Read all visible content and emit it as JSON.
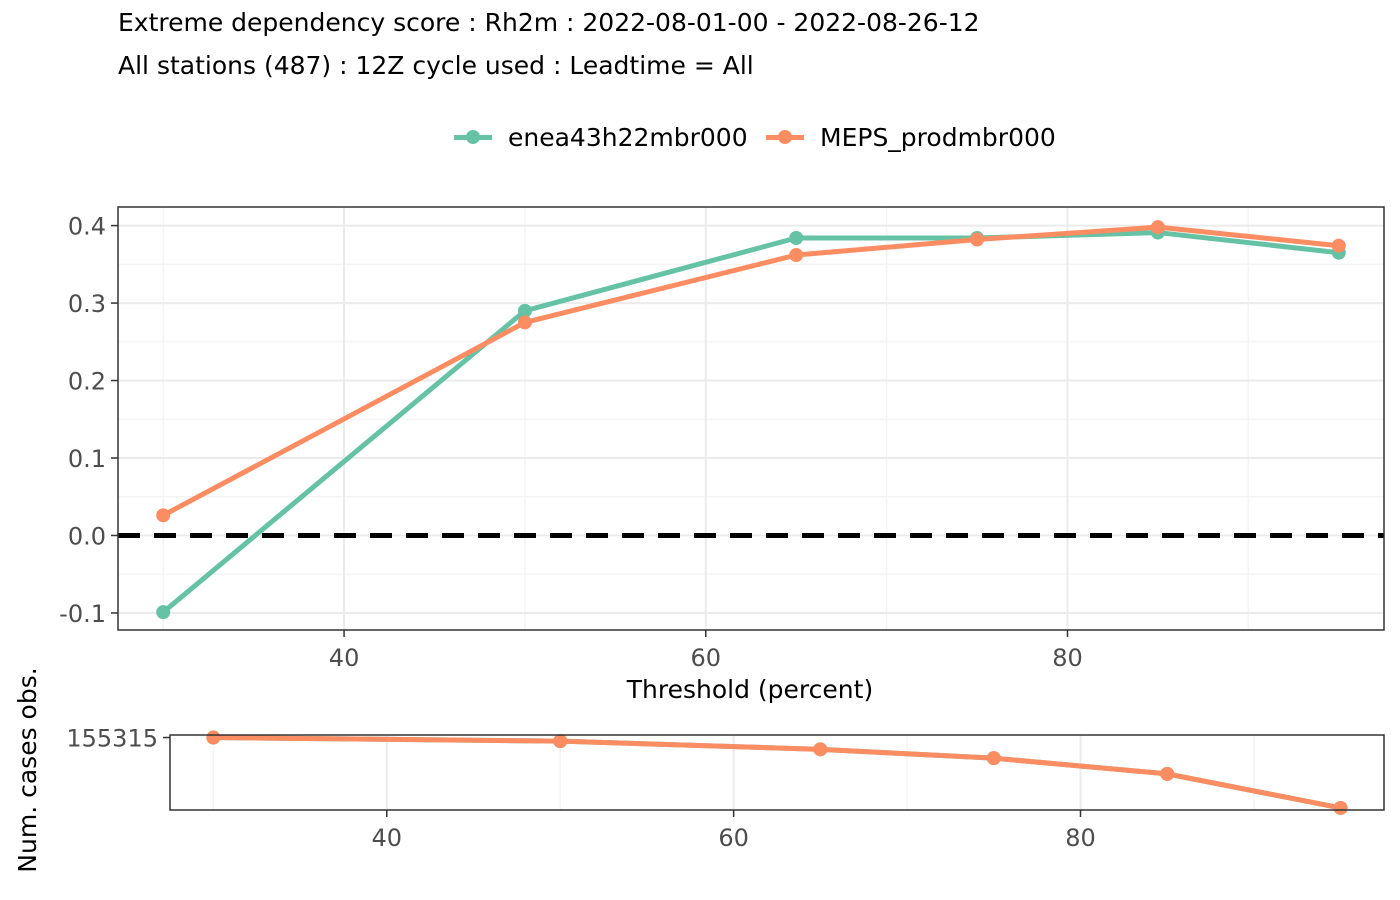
{
  "title": "Extreme dependency score : Rh2m : 2022-08-01-00 - 2022-08-26-12",
  "subtitle": "All stations (487) : 12Z cycle used : Leadtime = All",
  "colors": {
    "enea": "#66c2a5",
    "meps": "#fc8d62",
    "axis": "#333333",
    "grid_major": "#ebebeb",
    "grid_minor": "#f4f4f4",
    "zero_line": "#000000"
  },
  "chart_data": [
    {
      "type": "line",
      "title": "",
      "xlabel": "Threshold (percent)",
      "ylabel": "",
      "xlim": [
        27.5,
        97.5
      ],
      "ylim": [
        -0.122,
        0.424
      ],
      "xticks": [
        40,
        60,
        80
      ],
      "yticks": [
        -0.1,
        0.0,
        0.1,
        0.2,
        0.3,
        0.4
      ],
      "ytick_labels": [
        "-0.1",
        "0.0",
        "0.1",
        "0.2",
        "0.3",
        "0.4"
      ],
      "grid": true,
      "reference_line": 0,
      "legend_position": "top",
      "x": [
        30,
        50,
        65,
        75,
        85,
        95
      ],
      "series": [
        {
          "name": "enea43h22mbr000",
          "color": "#66c2a5",
          "values": [
            -0.099,
            0.29,
            0.384,
            0.384,
            0.391,
            0.365
          ]
        },
        {
          "name": "MEPS_prodmbr000",
          "color": "#fc8d62",
          "values": [
            0.026,
            0.275,
            0.362,
            0.382,
            0.398,
            0.374
          ]
        }
      ]
    },
    {
      "type": "line",
      "title": "",
      "xlabel": "",
      "ylabel": "Num. cases obs.",
      "xlim": [
        27.5,
        97.5
      ],
      "ylim": [
        150000,
        155500
      ],
      "xticks": [
        40,
        60,
        80
      ],
      "yticks": [
        155315
      ],
      "ytick_labels": [
        "155315"
      ],
      "grid": true,
      "x": [
        30,
        50,
        65,
        75,
        85,
        95
      ],
      "series": [
        {
          "name": "enea43h22mbr000",
          "color": "#66c2a5",
          "values": [
            155315,
            155050,
            154450,
            153800,
            152650,
            150150
          ]
        },
        {
          "name": "MEPS_prodmbr000",
          "color": "#fc8d62",
          "values": [
            155315,
            155050,
            154450,
            153800,
            152650,
            150150
          ]
        }
      ]
    }
  ]
}
